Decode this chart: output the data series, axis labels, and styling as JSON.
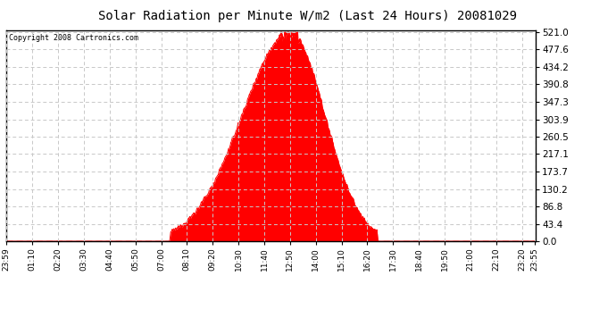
{
  "title": "Solar Radiation per Minute W/m2 (Last 24 Hours) 20081029",
  "copyright": "Copyright 2008 Cartronics.com",
  "background_color": "#ffffff",
  "plot_bg_color": "#ffffff",
  "fill_color": "#ff0000",
  "line_color": "#ff0000",
  "grid_color": "#c8c8c8",
  "dashed_line_color": "#ff0000",
  "yticks": [
    0.0,
    43.4,
    86.8,
    130.2,
    173.7,
    217.1,
    260.5,
    303.9,
    347.3,
    390.8,
    434.2,
    477.6,
    521.0
  ],
  "ymax": 521.0,
  "ymin": 0.0,
  "x_labels": [
    "23:59",
    "01:10",
    "02:20",
    "03:30",
    "04:40",
    "05:50",
    "07:00",
    "08:10",
    "09:20",
    "10:30",
    "11:40",
    "12:50",
    "14:00",
    "15:10",
    "16:20",
    "17:30",
    "18:40",
    "19:50",
    "21:00",
    "22:10",
    "23:20",
    "23:55"
  ],
  "total_points": 1440,
  "sunrise_index": 450,
  "sunset_index": 1010,
  "peak_value": 521.0,
  "peak_index": 770
}
